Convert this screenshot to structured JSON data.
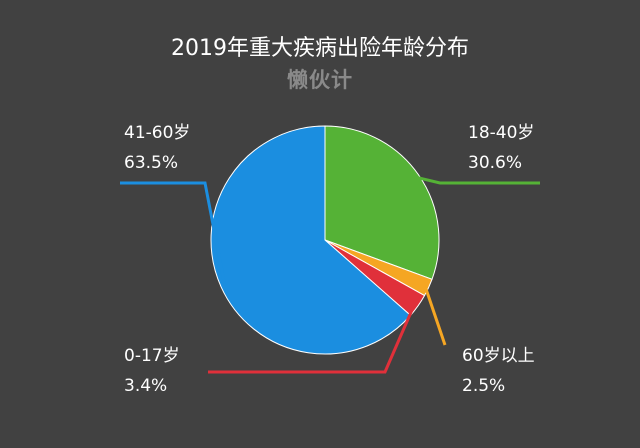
{
  "title": "2019年重大疾病出险年龄分布",
  "watermark": "懒伙计",
  "chart_data": {
    "type": "pie",
    "title": "2019年重大疾病出险年龄分布",
    "slices": [
      {
        "label": "18-40岁",
        "value": 30.6,
        "display": "30.6%",
        "color": "#55b236"
      },
      {
        "label": "60岁以上",
        "value": 2.5,
        "display": "2.5%",
        "color": "#f5a623"
      },
      {
        "label": "0-17岁",
        "value": 3.4,
        "display": "3.4%",
        "color": "#e0303a"
      },
      {
        "label": "41-60岁",
        "value": 63.5,
        "display": "63.5%",
        "color": "#1b8ee0"
      }
    ],
    "start_angle_deg": 0,
    "direction": "clockwise"
  }
}
